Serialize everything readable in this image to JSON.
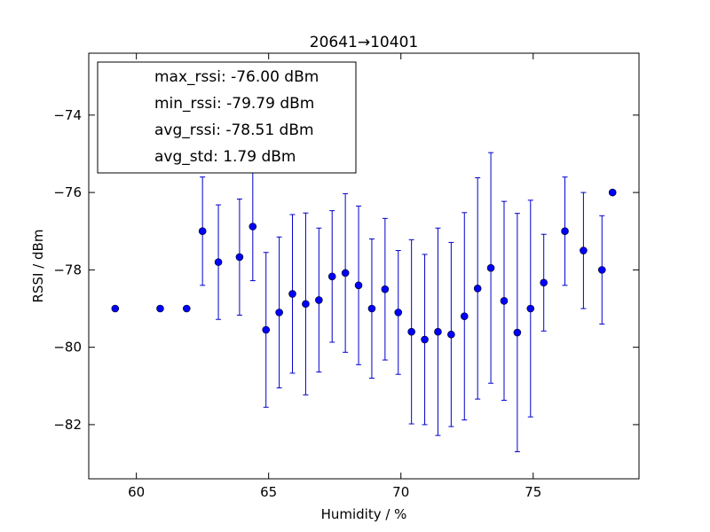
{
  "chart_data": {
    "type": "scatter",
    "title": "20641→10401",
    "xlabel": "Humidity / %",
    "ylabel": "RSSI / dBm",
    "xlim": [
      58.2,
      79.0
    ],
    "ylim": [
      -83.4,
      -72.4
    ],
    "xticks": [
      60,
      65,
      70,
      75
    ],
    "yticks": [
      -74,
      -76,
      -78,
      -80,
      -82
    ],
    "grid": false,
    "marker_color": "#0000ff",
    "errorbar_color": "#0000cc",
    "legend": {
      "placement": "top-left",
      "entries": [
        "max_rssi: -76.00 dBm",
        "min_rssi: -79.79 dBm",
        "avg_rssi: -78.51 dBm",
        "avg_std: 1.79 dBm"
      ]
    },
    "series": [
      {
        "points": [
          {
            "x": 59.2,
            "y": -79.0
          },
          {
            "x": 60.9,
            "y": -79.0
          },
          {
            "x": 61.9,
            "y": -79.0
          },
          {
            "x": 62.5,
            "y": -77.0,
            "err": 1.4
          },
          {
            "x": 63.1,
            "y": -77.8,
            "err": 1.48
          },
          {
            "x": 63.9,
            "y": -77.67,
            "err": 1.5
          },
          {
            "x": 64.4,
            "y": -76.88,
            "err": 1.4
          },
          {
            "x": 64.9,
            "y": -79.55,
            "err": 2.0
          },
          {
            "x": 65.4,
            "y": -79.1,
            "err": 1.95
          },
          {
            "x": 65.9,
            "y": -78.62,
            "err": 2.05
          },
          {
            "x": 66.4,
            "y": -78.88,
            "err": 2.35
          },
          {
            "x": 66.9,
            "y": -78.78,
            "err": 1.86
          },
          {
            "x": 67.4,
            "y": -78.17,
            "err": 1.7
          },
          {
            "x": 67.9,
            "y": -78.08,
            "err": 2.05
          },
          {
            "x": 68.4,
            "y": -78.4,
            "err": 2.05
          },
          {
            "x": 68.9,
            "y": -79.0,
            "err": 1.8
          },
          {
            "x": 69.4,
            "y": -78.5,
            "err": 1.83
          },
          {
            "x": 69.9,
            "y": -79.1,
            "err": 1.6
          },
          {
            "x": 70.4,
            "y": -79.6,
            "err": 2.38
          },
          {
            "x": 70.9,
            "y": -79.8,
            "err": 2.2
          },
          {
            "x": 71.4,
            "y": -79.6,
            "err": 2.68
          },
          {
            "x": 71.9,
            "y": -79.67,
            "err": 2.38
          },
          {
            "x": 72.4,
            "y": -79.2,
            "err": 2.68
          },
          {
            "x": 72.9,
            "y": -78.48,
            "err": 2.86
          },
          {
            "x": 73.4,
            "y": -77.95,
            "err": 2.98
          },
          {
            "x": 73.9,
            "y": -78.8,
            "err": 2.57
          },
          {
            "x": 74.4,
            "y": -79.62,
            "err": 3.08
          },
          {
            "x": 74.9,
            "y": -79.0,
            "err": 2.8
          },
          {
            "x": 75.4,
            "y": -78.33,
            "err": 1.25
          },
          {
            "x": 76.2,
            "y": -77.0,
            "err": 1.4
          },
          {
            "x": 76.9,
            "y": -77.5,
            "err": 1.5
          },
          {
            "x": 77.6,
            "y": -78.0,
            "err": 1.4
          },
          {
            "x": 78.0,
            "y": -76.0
          }
        ]
      }
    ]
  }
}
